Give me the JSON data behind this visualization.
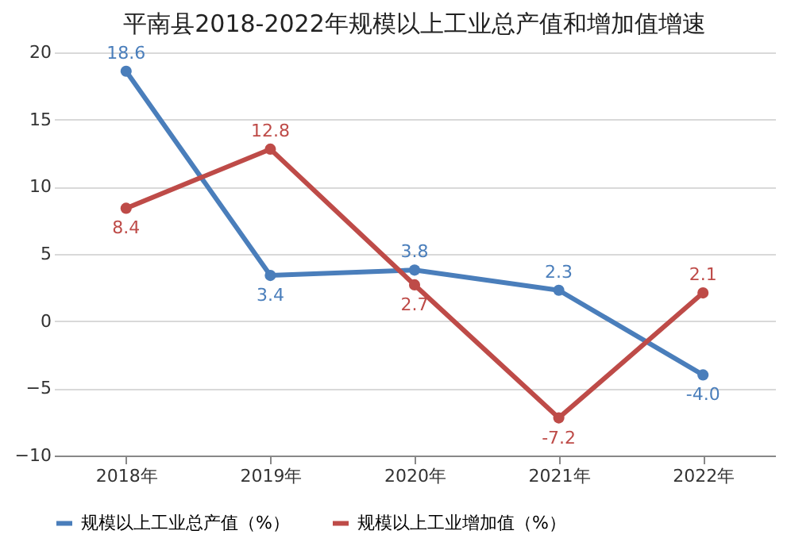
{
  "chart_data": {
    "type": "line",
    "title": "平南县2018-2022年规模以上工业总产值和增加值增速",
    "categories": [
      "2018年",
      "2019年",
      "2020年",
      "2021年",
      "2022年"
    ],
    "series": [
      {
        "name": "规模以上工业总产值（%）",
        "color": "#4a7ebb",
        "values": [
          18.6,
          3.4,
          3.8,
          2.3,
          -4.0
        ],
        "value_labels": [
          "18.6",
          "3.4",
          "3.8",
          "2.3",
          "-4.0"
        ]
      },
      {
        "name": "规模以上工业增加值（%）",
        "color": "#be4b48",
        "values": [
          8.4,
          12.8,
          2.7,
          -7.2,
          2.1
        ],
        "value_labels": [
          "8.4",
          "12.8",
          "2.7",
          "-7.2",
          "2.1"
        ]
      }
    ],
    "ylim": [
      -10,
      20
    ],
    "yticks": [
      -10,
      -5,
      0,
      5,
      10,
      15,
      20
    ],
    "grid": "y",
    "legend": "bottom",
    "marker": "circle",
    "line_style": "solid"
  }
}
